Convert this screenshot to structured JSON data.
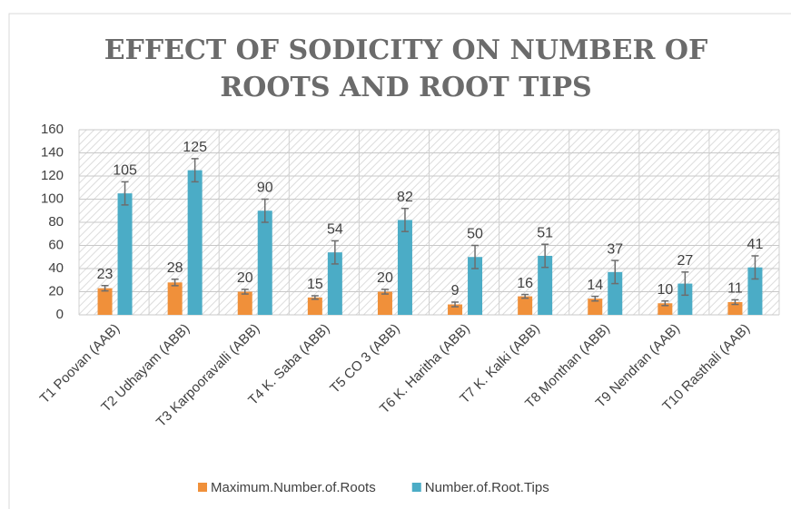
{
  "chart_data": {
    "type": "bar",
    "title_lines": [
      "EFFECT OF SODICITY ON NUMBER OF",
      "ROOTS AND ROOT TIPS"
    ],
    "categories": [
      "T1 Poovan (AAB)",
      "T2 Udhayam (ABB)",
      "T3 Karpooravalli (ABB)",
      "T4 K. Saba (ABB)",
      "T5 CO 3 (ABB)",
      "T6 K. Haritha (ABB)",
      "T7  K. Kalki (ABB)",
      "T8 Monthan (ABB)",
      "T9 Nendran (AAB)",
      "T10 Rasthali (AAB)"
    ],
    "series": [
      {
        "name": "Maximum.Number.of.Roots",
        "color": "#f0903a",
        "values": [
          23,
          28,
          20,
          15,
          20,
          9,
          16,
          14,
          10,
          11
        ],
        "errors": [
          2.3,
          2.8,
          2,
          1.5,
          2,
          2,
          1.6,
          2,
          2,
          2
        ]
      },
      {
        "name": "Number.of.Root.Tips",
        "color": "#4bacc6",
        "values": [
          105,
          125,
          90,
          54,
          82,
          50,
          51,
          37,
          27,
          41
        ],
        "errors": [
          10,
          10,
          10,
          10,
          10,
          10,
          10,
          10,
          10,
          10
        ]
      }
    ],
    "ylim": [
      0,
      160
    ],
    "yticks": [
      0,
      20,
      40,
      60,
      80,
      100,
      120,
      140,
      160
    ],
    "grid": true,
    "legend": "bottom"
  }
}
